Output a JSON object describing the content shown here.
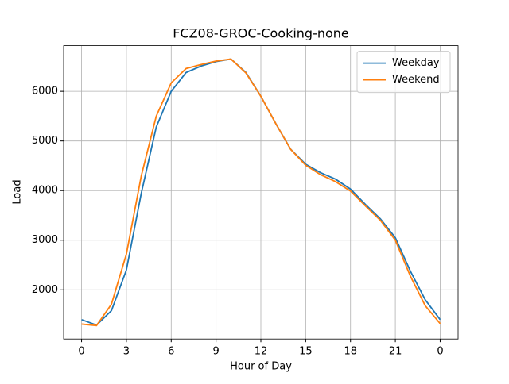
{
  "chart_data": {
    "type": "line",
    "title": "FCZ08-GROC-Cooking-none",
    "x_label": "Hour of Day",
    "y_label": "Load",
    "x": [
      0,
      1,
      2,
      3,
      4,
      5,
      6,
      7,
      8,
      9,
      10,
      11,
      12,
      13,
      14,
      15,
      16,
      17,
      18,
      19,
      20,
      21,
      22,
      23,
      24
    ],
    "series": [
      {
        "name": "Weekday",
        "color": "#1f77b4",
        "values": [
          1400,
          1290,
          1580,
          2400,
          3950,
          5280,
          6000,
          6380,
          6510,
          6600,
          6650,
          6380,
          5900,
          5350,
          4830,
          4530,
          4360,
          4230,
          4030,
          3720,
          3430,
          3050,
          2380,
          1800,
          1400
        ]
      },
      {
        "name": "Weekend",
        "color": "#ff7f0e",
        "values": [
          1310,
          1280,
          1710,
          2720,
          4300,
          5500,
          6170,
          6460,
          6540,
          6610,
          6650,
          6370,
          5900,
          5350,
          4830,
          4510,
          4320,
          4180,
          3990,
          3690,
          3400,
          3000,
          2280,
          1680,
          1320
        ]
      }
    ],
    "xlim": [
      -1.2,
      25.2
    ],
    "xticks": [
      0,
      3,
      6,
      9,
      12,
      15,
      18,
      21,
      {
        "value": 24,
        "label": "0"
      }
    ],
    "ylim": [
      1010,
      6920
    ],
    "yticks": [
      2000,
      3000,
      4000,
      5000,
      6000
    ],
    "grid": true,
    "legend": "upper right"
  }
}
